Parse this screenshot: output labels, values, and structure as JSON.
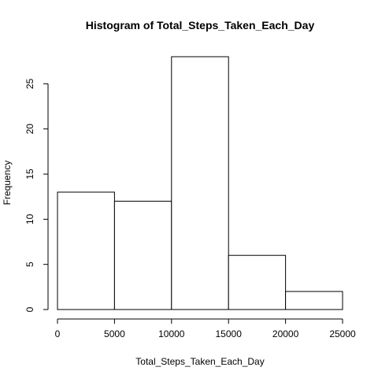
{
  "chart_data": {
    "type": "bar",
    "title": "Histogram of Total_Steps_Taken_Each_Day",
    "xlabel": "Total_Steps_Taken_Each_Day",
    "ylabel": "Frequency",
    "bins": [
      {
        "from": 0,
        "to": 5000,
        "value": 13
      },
      {
        "from": 5000,
        "to": 10000,
        "value": 12
      },
      {
        "from": 10000,
        "to": 15000,
        "value": 28
      },
      {
        "from": 15000,
        "to": 20000,
        "value": 6
      },
      {
        "from": 20000,
        "to": 25000,
        "value": 2
      }
    ],
    "xlim": [
      0,
      25000
    ],
    "ylim": [
      0,
      28
    ],
    "x_ticks": [
      0,
      5000,
      10000,
      15000,
      20000,
      25000
    ],
    "y_ticks": [
      0,
      5,
      10,
      15,
      20,
      25
    ],
    "x_tick_labels": [
      "0",
      "5000",
      "10000",
      "15000",
      "20000",
      "25000"
    ],
    "y_tick_labels": [
      "0",
      "5",
      "10",
      "15",
      "20",
      "25"
    ],
    "colors": {
      "bar_fill": "#ffffff",
      "bar_stroke": "#000000",
      "axis": "#000000",
      "background": "#ffffff"
    }
  }
}
